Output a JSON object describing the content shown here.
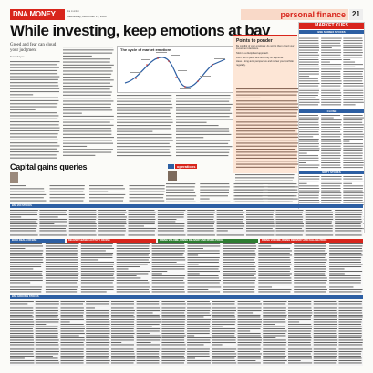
{
  "masthead": {
    "brand": "DNA MONEY",
    "section": "personal finance",
    "page_number": "21",
    "date_line": "dna mumbai",
    "date_line2": "Wednesday, December 13, 2006"
  },
  "article": {
    "headline": "While investing, keep emotions at bay",
    "deck": "Greed and fear can cloud your judgment",
    "byline": "Suresh Iyer"
  },
  "chart": {
    "title": "The cycle of market emotions",
    "color": "#2d5fa3"
  },
  "sidebar": {
    "title": "Points to ponder",
    "points": [
      "Be mindful of your emotions; do not let them cloud your investment decisions.",
      "Stick to a disciplined approach.",
      "Don't sell in panic and don't buy on euphoria.",
      "Have a long-term perspective and review your portfolio regularly."
    ]
  },
  "market_cues": {
    "title": "MARKET CUES",
    "subheads": [
      "BSE SENSEX STOCKS",
      "CLOSE",
      "NIFTY STOCKS"
    ]
  },
  "capital_gains": {
    "title": "Capital gains queries"
  },
  "operations": {
    "label": "operations"
  },
  "tables": {
    "band1": "BSE 200 STOCKS",
    "section_heads": [
      "BULK DEALS ON BSE",
      "DELIVERY-BASED ACTIVITY ON NSE",
      "RISING VOLUME, RISING DELIVERY AND RISING PRICE",
      "RISING VOLUME, RISING DELIVERY AND FALLING PRICE"
    ],
    "band2": "BSE GROUP B STOCKS"
  },
  "colors": {
    "accent_red": "#d8251c",
    "accent_blue": "#2d5fa3",
    "sidebar_bg": "#fde6d6"
  }
}
